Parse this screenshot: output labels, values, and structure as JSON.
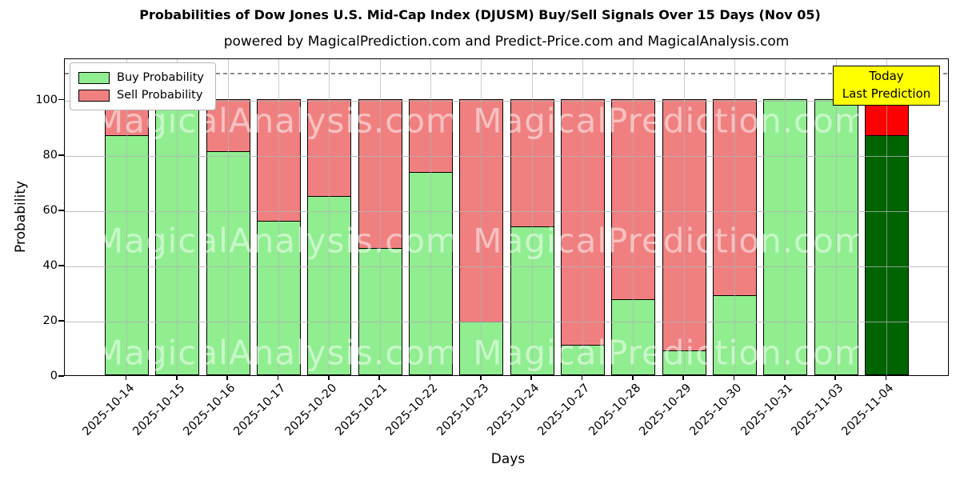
{
  "figure": {
    "title": "Probabilities of Dow Jones U.S. Mid-Cap Index (DJUSM) Buy/Sell Signals Over 15 Days (Nov 05)",
    "subtitle": "powered by MagicalPrediction.com and Predict-Price.com and MagicalAnalysis.com"
  },
  "axes": {
    "xlabel": "Days",
    "ylabel": "Probability",
    "yticks": [
      0,
      20,
      40,
      60,
      80,
      100
    ],
    "ylim": [
      0,
      115
    ]
  },
  "legend": {
    "items": [
      {
        "label": "Buy Probability",
        "color": "#90ee90"
      },
      {
        "label": "Sell Probability",
        "color": "#f08080"
      }
    ]
  },
  "today_annotation": {
    "line1": "Today",
    "line2": "Last Prediction",
    "bg_color": "#ffff00"
  },
  "watermarks": {
    "left": "MagicalAnalysis.com",
    "right": "MagicalPrediction.com"
  },
  "colors": {
    "buy": "#90ee90",
    "sell": "#f08080",
    "today_buy": "#006400",
    "today_sell": "#ff0000",
    "grid": "#b0b0b0",
    "threshold_line": "#8a8a8a",
    "bar_edge": "#000000",
    "watermark": "rgba(255,255,255,0.5)"
  },
  "chart_data": {
    "type": "bar",
    "stacked": true,
    "title": "Probabilities of Dow Jones U.S. Mid-Cap Index (DJUSM) Buy/Sell Signals Over 15 Days (Nov 05)",
    "xlabel": "Days",
    "ylabel": "Probability",
    "ylim": [
      0,
      115
    ],
    "grid": true,
    "legend_position": "upper left",
    "dashed_line_y": 110,
    "categories": [
      "2025-10-14",
      "2025-10-15",
      "2025-10-16",
      "2025-10-17",
      "2025-10-20",
      "2025-10-21",
      "2025-10-22",
      "2025-10-23",
      "2025-10-24",
      "2025-10-27",
      "2025-10-28",
      "2025-10-29",
      "2025-10-30",
      "2025-10-31",
      "2025-11-03",
      "2025-11-04"
    ],
    "series": [
      {
        "name": "Buy Probability",
        "color": "#90ee90",
        "values": [
          87,
          100,
          81,
          56,
          65,
          46,
          73.5,
          19.5,
          54,
          11,
          27.5,
          9,
          29,
          100,
          100,
          87
        ]
      },
      {
        "name": "Sell Probability",
        "color": "#f08080",
        "values": [
          13,
          0,
          19,
          44,
          35,
          54,
          26.5,
          80.5,
          46,
          89,
          72.5,
          91,
          71,
          0,
          0,
          13
        ]
      }
    ],
    "today_bar": {
      "category": "2025-11-04",
      "index": 15,
      "buy": 87,
      "sell": 13,
      "buy_color": "#006400",
      "sell_color": "#ff0000"
    }
  }
}
